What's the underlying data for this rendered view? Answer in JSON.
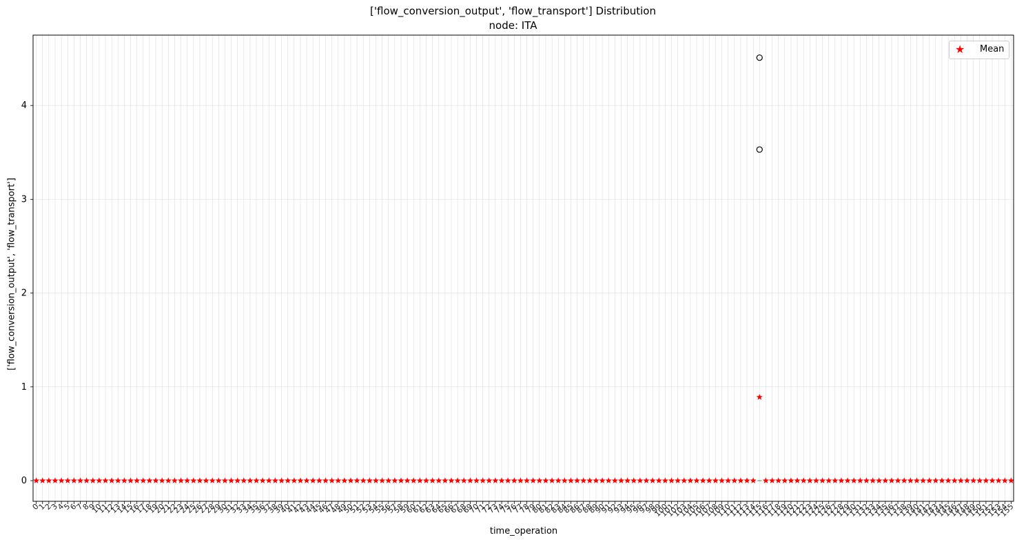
{
  "chart_data": {
    "type": "box",
    "title": "['flow_conversion_output', 'flow_transport'] Distribution",
    "subtitle": "node: ITA",
    "xlabel": "time_operation",
    "ylabel": "['flow_conversion_output', 'flow_transport']",
    "x_categories_range": [
      0,
      155
    ],
    "ylim": [
      -0.22,
      4.75
    ],
    "yticks": [
      0,
      1,
      2,
      3,
      4
    ],
    "grid": true,
    "legend": {
      "position": "top-right",
      "entries": [
        "Mean"
      ]
    },
    "mean_values_default": 0,
    "highlighted_category": {
      "index": 115,
      "mean": 0.89,
      "outliers": [
        4.51,
        3.53
      ],
      "median": 0
    },
    "colors": {
      "mean_marker": "#ff0000",
      "outlier": "#000000",
      "grid": "#dddddd"
    }
  }
}
